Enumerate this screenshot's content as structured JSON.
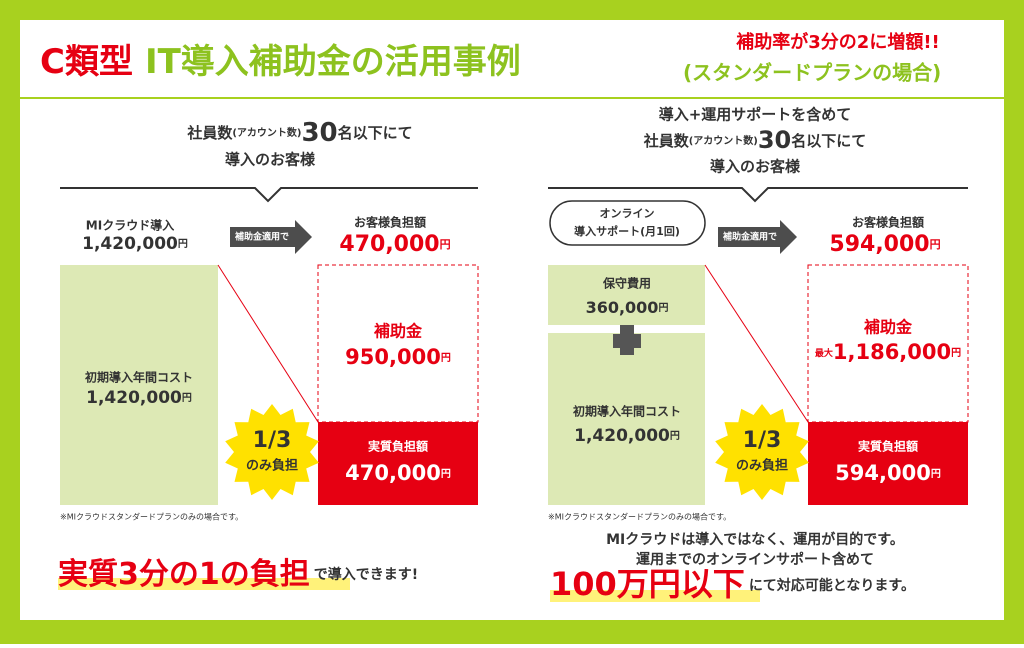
{
  "header": {
    "prefix": "C類型",
    "title": "IT導入補助金の活用事例",
    "subtitle": "(スタンダードプランの場合)",
    "badge": "補助率が3分の2に増額!!"
  },
  "unit": "円",
  "left": {
    "heading": {
      "pre": "社員数",
      "note": "(アカウント数)",
      "num": "30",
      "post": "名以下にて",
      "line2": "導入のお客様"
    },
    "cost_label": "MIクラウド導入",
    "cost_value": "1,420,000",
    "arrow": "補助金適用で",
    "burden_label": "お客様負担額",
    "burden_value": "470,000",
    "box_label": "初期導入年間コスト",
    "box_value": "1,420,000",
    "subsidy_label": "補助金",
    "subsidy_value": "950,000",
    "star": {
      "fraction": "1/3",
      "text": "のみ負担"
    },
    "actual_label": "実質負担額",
    "actual_value": "470,000",
    "note": "※MIクラウドスタンダードプランのみの場合です。",
    "footer": {
      "highlight": "実質3分の1の負担",
      "rest": "で導入できます!"
    }
  },
  "right": {
    "heading": {
      "line1": "導入+運用サポートを含めて",
      "pre": "社員数",
      "note": "(アカウント数)",
      "num": "30",
      "post": "名以下にて",
      "line3": "導入のお客様"
    },
    "bubble": [
      "オンライン",
      "導入サポート(月1回)"
    ],
    "arrow": "補助金適用で",
    "burden_label": "お客様負担額",
    "burden_value": "594,000",
    "maint_label": "保守費用",
    "maint_value": "360,000",
    "box_label": "初期導入年間コスト",
    "box_value": "1,420,000",
    "subsidy_label": "補助金",
    "subsidy_prefix": "最大",
    "subsidy_value": "1,186,000",
    "star": {
      "fraction": "1/3",
      "text": "のみ負担"
    },
    "actual_label": "実質負担額",
    "actual_value": "594,000",
    "note": "※MIクラウドスタンダードプランのみの場合です。",
    "footer": {
      "line1": "MIクラウドは導入ではなく、運用が目的です。",
      "line2": "運用までのオンラインサポート含めて",
      "highlight": "100万円以下",
      "rest": "にて対応可能となります。"
    }
  }
}
